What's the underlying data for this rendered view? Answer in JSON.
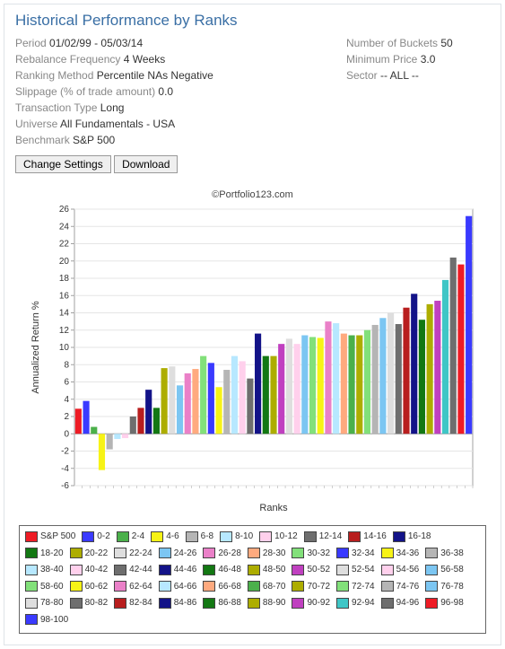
{
  "title": "Historical Performance by Ranks",
  "params_left": [
    {
      "label": "Period",
      "value": "01/02/99 - 05/03/14"
    },
    {
      "label": "Rebalance Frequency",
      "value": "4 Weeks"
    },
    {
      "label": "Ranking Method",
      "value": "Percentile NAs Negative"
    },
    {
      "label": "Slippage (% of trade amount)",
      "value": "0.0"
    },
    {
      "label": "Transaction Type",
      "value": "Long"
    },
    {
      "label": "Universe",
      "value": "All Fundamentals - USA"
    },
    {
      "label": "Benchmark",
      "value": "S&P 500"
    }
  ],
  "params_right": [
    {
      "label": "Number of Buckets",
      "value": "50"
    },
    {
      "label": "Minimum Price",
      "value": "3.0"
    },
    {
      "label": "Sector",
      "value": "-- ALL --"
    }
  ],
  "buttons": {
    "change": "Change Settings",
    "download": "Download"
  },
  "chart": {
    "attribution": "©Portfolio123.com",
    "ylabel": "Annualized Return %",
    "xlabel": "Ranks",
    "ylim": [
      -6,
      26
    ],
    "ytick_step": 2,
    "grid_color": "#e5e5e5",
    "axis_color": "#a0a0a0",
    "background": "#ffffff",
    "bars": [
      {
        "label": "S&P 500",
        "value": 2.9,
        "color": "#ee1c25"
      },
      {
        "label": "0-2",
        "value": 3.8,
        "color": "#3a3aff"
      },
      {
        "label": "2-4",
        "value": 0.8,
        "color": "#4bb04b"
      },
      {
        "label": "4-6",
        "value": -4.2,
        "color": "#f7f316"
      },
      {
        "label": "6-8",
        "value": -1.8,
        "color": "#b5b5b5"
      },
      {
        "label": "8-10",
        "value": -0.6,
        "color": "#b7e8ff"
      },
      {
        "label": "10-12",
        "value": -0.5,
        "color": "#ffd0ec"
      },
      {
        "label": "12-14",
        "value": 2.0,
        "color": "#6e6e6e"
      },
      {
        "label": "14-16",
        "value": 3.0,
        "color": "#b81e1e"
      },
      {
        "label": "16-18",
        "value": 5.1,
        "color": "#131388"
      },
      {
        "label": "18-20",
        "value": 3.0,
        "color": "#137813"
      },
      {
        "label": "20-22",
        "value": 7.6,
        "color": "#adad00"
      },
      {
        "label": "22-24",
        "value": 7.8,
        "color": "#dedede"
      },
      {
        "label": "24-26",
        "value": 5.6,
        "color": "#7cc6f2"
      },
      {
        "label": "26-28",
        "value": 7.0,
        "color": "#ea80c8"
      },
      {
        "label": "28-30",
        "value": 7.5,
        "color": "#ffaa7f"
      },
      {
        "label": "30-32",
        "value": 9.0,
        "color": "#82e07a"
      },
      {
        "label": "32-34",
        "value": 8.2,
        "color": "#3a3aff"
      },
      {
        "label": "34-36",
        "value": 5.4,
        "color": "#f7f316"
      },
      {
        "label": "36-38",
        "value": 7.4,
        "color": "#b5b5b5"
      },
      {
        "label": "38-40",
        "value": 9.0,
        "color": "#b7e8ff"
      },
      {
        "label": "40-42",
        "value": 8.4,
        "color": "#ffd0ec"
      },
      {
        "label": "42-44",
        "value": 6.4,
        "color": "#6e6e6e"
      },
      {
        "label": "44-46",
        "value": 11.6,
        "color": "#131388"
      },
      {
        "label": "46-48",
        "value": 9.0,
        "color": "#137813"
      },
      {
        "label": "48-50",
        "value": 9.0,
        "color": "#adad00"
      },
      {
        "label": "50-52",
        "value": 10.4,
        "color": "#c040c0"
      },
      {
        "label": "52-54",
        "value": 11.0,
        "color": "#dedede"
      },
      {
        "label": "54-56",
        "value": 10.4,
        "color": "#ffd0ec"
      },
      {
        "label": "56-58",
        "value": 11.4,
        "color": "#7cc6f2"
      },
      {
        "label": "58-60",
        "value": 11.2,
        "color": "#82e07a"
      },
      {
        "label": "60-62",
        "value": 11.1,
        "color": "#f7f316"
      },
      {
        "label": "62-64",
        "value": 13.0,
        "color": "#ea80c8"
      },
      {
        "label": "64-66",
        "value": 12.8,
        "color": "#b7e8ff"
      },
      {
        "label": "66-68",
        "value": 11.6,
        "color": "#ffaa7f"
      },
      {
        "label": "68-70",
        "value": 11.4,
        "color": "#4bb04b"
      },
      {
        "label": "70-72",
        "value": 11.4,
        "color": "#adad00"
      },
      {
        "label": "72-74",
        "value": 12.0,
        "color": "#82e07a"
      },
      {
        "label": "74-76",
        "value": 12.6,
        "color": "#b5b5b5"
      },
      {
        "label": "76-78",
        "value": 13.4,
        "color": "#7cc6f2"
      },
      {
        "label": "78-80",
        "value": 14.0,
        "color": "#dedede"
      },
      {
        "label": "80-82",
        "value": 12.7,
        "color": "#6e6e6e"
      },
      {
        "label": "82-84",
        "value": 14.6,
        "color": "#b81e1e"
      },
      {
        "label": "84-86",
        "value": 16.2,
        "color": "#131388"
      },
      {
        "label": "86-88",
        "value": 13.2,
        "color": "#137813"
      },
      {
        "label": "88-90",
        "value": 15.0,
        "color": "#adad00"
      },
      {
        "label": "90-92",
        "value": 15.4,
        "color": "#c040c0"
      },
      {
        "label": "92-94",
        "value": 17.8,
        "color": "#3fc6c6"
      },
      {
        "label": "94-96",
        "value": 20.4,
        "color": "#6e6e6e"
      },
      {
        "label": "96-98",
        "value": 19.6,
        "color": "#ee1c25"
      },
      {
        "label": "98-100",
        "value": 25.2,
        "color": "#3a3aff"
      }
    ]
  }
}
